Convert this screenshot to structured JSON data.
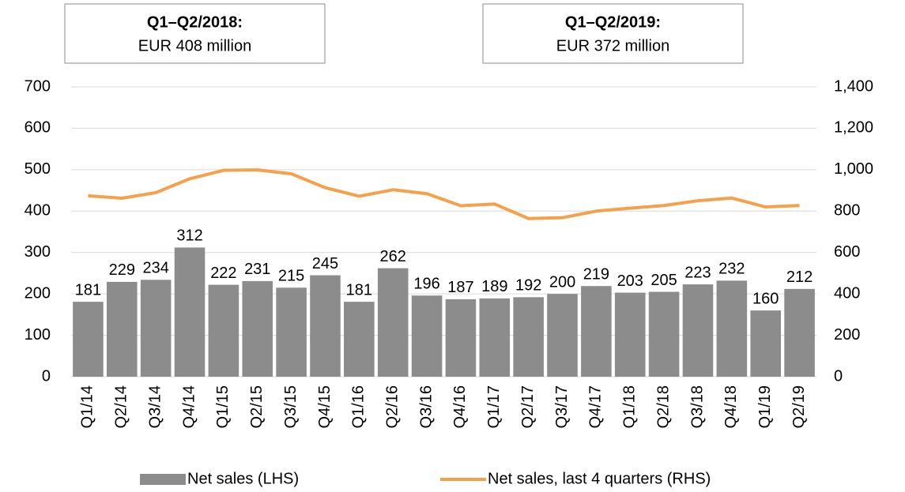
{
  "chart_data": {
    "type": "bar",
    "annotations": [
      {
        "title": "Q1–Q2/2018:",
        "text": "EUR 408 million"
      },
      {
        "title": "Q1–Q2/2019:",
        "text": "EUR 372 million"
      }
    ],
    "categories": [
      "Q1/14",
      "Q2/14",
      "Q3/14",
      "Q4/14",
      "Q1/15",
      "Q2/15",
      "Q3/15",
      "Q4/15",
      "Q1/16",
      "Q2/16",
      "Q3/16",
      "Q4/16",
      "Q1/17",
      "Q2/17",
      "Q3/17",
      "Q4/17",
      "Q1/18",
      "Q2/18",
      "Q3/18",
      "Q4/18",
      "Q1/19",
      "Q2/19"
    ],
    "series": [
      {
        "name": "Net sales (LHS)",
        "type": "bar",
        "color": "#8c8c8c",
        "axis": "y",
        "values": [
          181,
          229,
          234,
          312,
          222,
          231,
          215,
          245,
          181,
          262,
          196,
          187,
          189,
          192,
          200,
          219,
          203,
          205,
          223,
          232,
          160,
          212
        ]
      },
      {
        "name": "Net sales, last 4 quarters (RHS)",
        "type": "line",
        "color": "#f5a04a",
        "axis": "y2",
        "values": [
          874,
          862,
          889,
          956,
          997,
          999,
          980,
          913,
          872,
          903,
          884,
          826,
          834,
          764,
          768,
          800,
          814,
          827,
          850,
          863,
          820,
          827
        ]
      }
    ],
    "ylim": [
      0,
      700
    ],
    "yticks": [
      0,
      100,
      200,
      300,
      400,
      500,
      600,
      700
    ],
    "y2lim": [
      0,
      1400
    ],
    "y2ticks": [
      0,
      200,
      400,
      600,
      800,
      {
        "value": 1000,
        "label": "1,000"
      },
      {
        "value": 1200,
        "label": "1,200"
      },
      {
        "value": 1400,
        "label": "1,400"
      }
    ],
    "grid": true
  }
}
